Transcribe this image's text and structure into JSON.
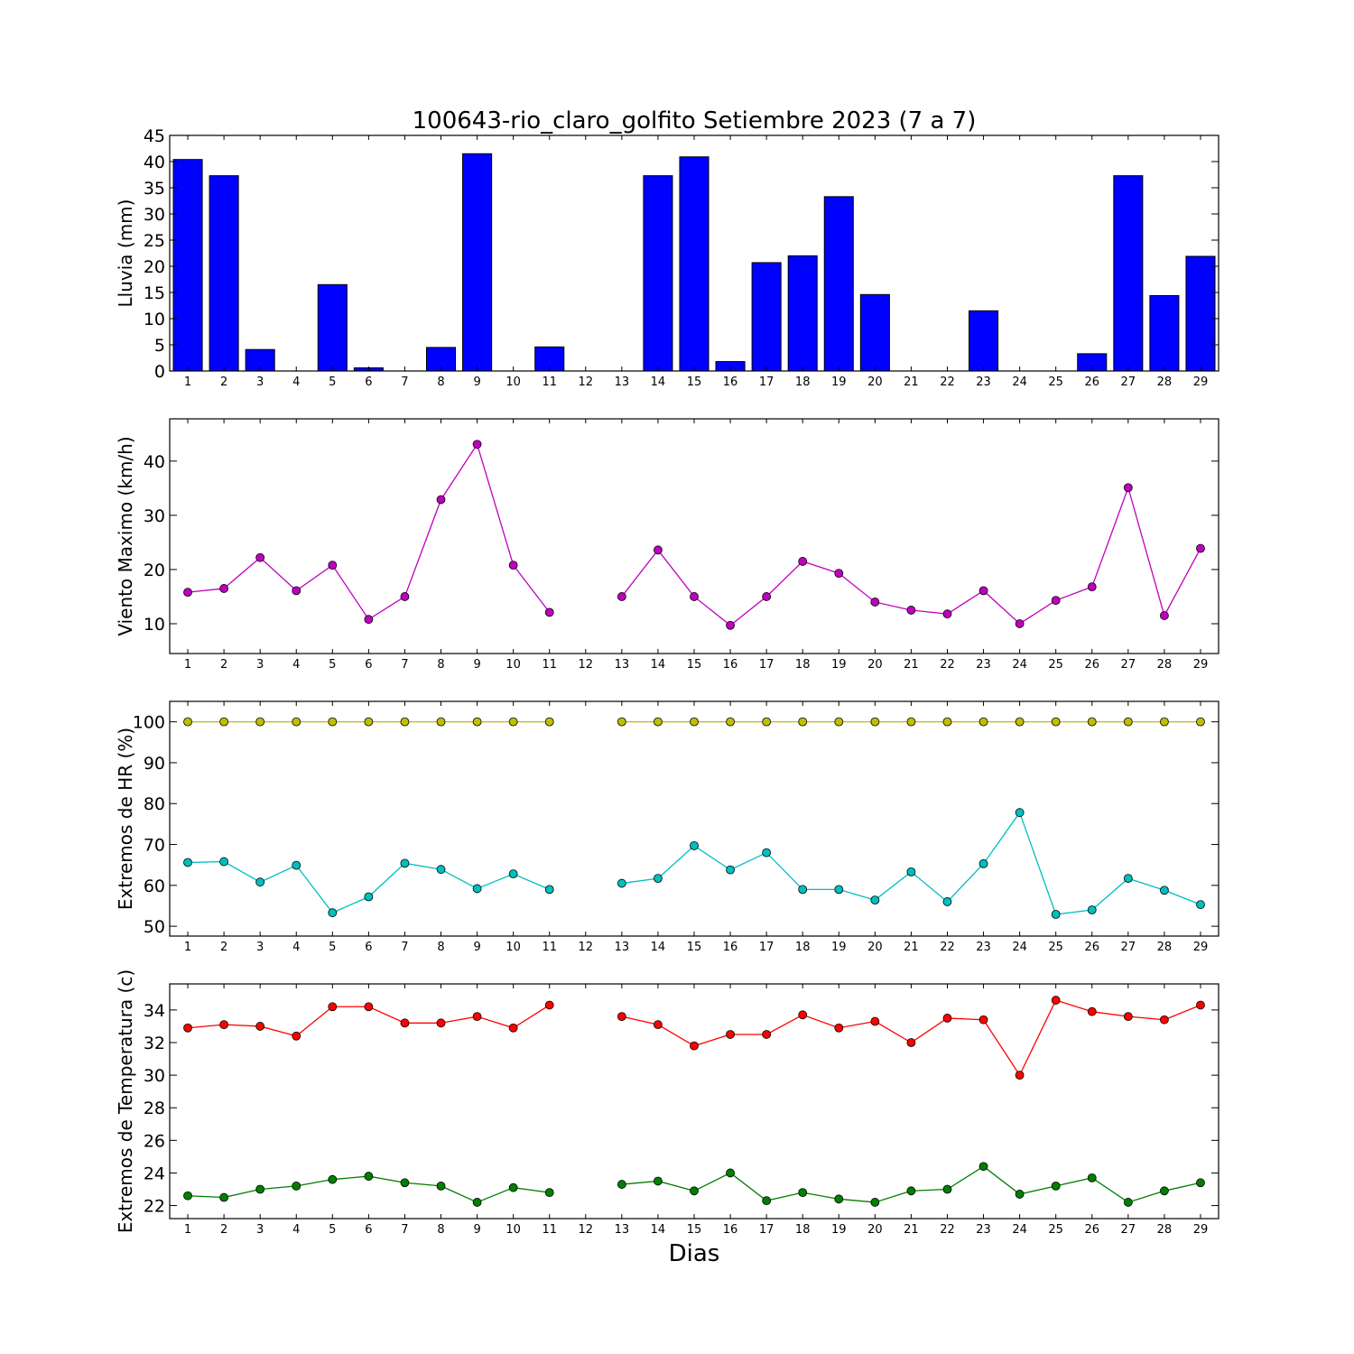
{
  "title": "100643-rio_claro_golfito Setiembre 2023  (7 a 7)",
  "xlabel": "Dias",
  "chart_data": [
    {
      "type": "bar",
      "ylabel": "Lluvia (mm)",
      "ylim": [
        0,
        45
      ],
      "yticks": [
        0,
        5,
        10,
        15,
        20,
        25,
        30,
        35,
        40,
        45
      ],
      "xlim": [
        0.5,
        29.5
      ],
      "categories": [
        1,
        2,
        3,
        4,
        5,
        6,
        7,
        8,
        9,
        10,
        11,
        12,
        13,
        14,
        15,
        16,
        17,
        18,
        19,
        20,
        21,
        22,
        23,
        24,
        25,
        26,
        27,
        28,
        29
      ],
      "series": [
        {
          "color": "#0000ff",
          "values": [
            40.4,
            37.3,
            4.1,
            0,
            16.5,
            0.6,
            0,
            4.5,
            41.5,
            0,
            4.6,
            0,
            0,
            37.3,
            40.9,
            1.8,
            20.7,
            22.0,
            33.3,
            14.6,
            0,
            0,
            11.5,
            0,
            0,
            3.3,
            37.3,
            14.4,
            21.9
          ]
        }
      ]
    },
    {
      "type": "line",
      "ylabel": "Viento Maximo (km/h)",
      "ylim": [
        4.5,
        47.8
      ],
      "yticks": [
        10,
        20,
        30,
        40
      ],
      "xlim": [
        0.5,
        29.5
      ],
      "x": [
        1,
        2,
        3,
        4,
        5,
        6,
        7,
        8,
        9,
        10,
        11,
        12,
        13,
        14,
        15,
        16,
        17,
        18,
        19,
        20,
        21,
        22,
        23,
        24,
        25,
        26,
        27,
        28,
        29
      ],
      "series": [
        {
          "color": "#bf00bf",
          "values": [
            15.8,
            16.5,
            22.2,
            16.1,
            20.8,
            10.8,
            15.0,
            32.9,
            43.1,
            20.8,
            12.1,
            null,
            15.0,
            23.6,
            15.0,
            9.7,
            15.0,
            21.5,
            19.3,
            14.0,
            12.5,
            11.8,
            16.1,
            10.0,
            14.3,
            16.8,
            35.1,
            11.5,
            23.9
          ]
        }
      ]
    },
    {
      "type": "line",
      "ylabel": "Extremos de HR (%)",
      "ylim": [
        47.6,
        105
      ],
      "yticks": [
        50,
        60,
        70,
        80,
        90,
        100
      ],
      "xlim": [
        0.5,
        29.5
      ],
      "x": [
        1,
        2,
        3,
        4,
        5,
        6,
        7,
        8,
        9,
        10,
        11,
        12,
        13,
        14,
        15,
        16,
        17,
        18,
        19,
        20,
        21,
        22,
        23,
        24,
        25,
        26,
        27,
        28,
        29
      ],
      "series": [
        {
          "color": "#bfbf00",
          "values": [
            100,
            100,
            100,
            100,
            100,
            100,
            100,
            100,
            100,
            100,
            100,
            null,
            100,
            100,
            100,
            100,
            100,
            100,
            100,
            100,
            100,
            100,
            100,
            100,
            100,
            100,
            100,
            100,
            100
          ]
        },
        {
          "color": "#00bfbf",
          "values": [
            65.6,
            65.8,
            60.8,
            64.9,
            53.3,
            57.2,
            65.4,
            63.9,
            59.2,
            62.8,
            59.0,
            null,
            60.5,
            61.7,
            69.7,
            63.8,
            68.0,
            59.0,
            59.0,
            56.4,
            63.3,
            56.0,
            65.3,
            77.8,
            52.9,
            54.0,
            61.7,
            58.8,
            55.3
          ]
        }
      ]
    },
    {
      "type": "line",
      "ylabel": "Extremos de Temperatura (c)",
      "ylim": [
        21.2,
        35.6
      ],
      "yticks": [
        22,
        24,
        26,
        28,
        30,
        32,
        34
      ],
      "xlim": [
        0.5,
        29.5
      ],
      "x": [
        1,
        2,
        3,
        4,
        5,
        6,
        7,
        8,
        9,
        10,
        11,
        12,
        13,
        14,
        15,
        16,
        17,
        18,
        19,
        20,
        21,
        22,
        23,
        24,
        25,
        26,
        27,
        28,
        29
      ],
      "series": [
        {
          "color": "#ff0000",
          "values": [
            32.9,
            33.1,
            33.0,
            32.4,
            34.2,
            34.2,
            33.2,
            33.2,
            33.6,
            32.9,
            34.3,
            null,
            33.6,
            33.1,
            31.8,
            32.5,
            32.5,
            33.7,
            32.9,
            33.3,
            32.0,
            33.5,
            33.4,
            30.0,
            34.6,
            33.9,
            33.6,
            33.4,
            34.3
          ]
        },
        {
          "color": "#007f00",
          "values": [
            22.6,
            22.5,
            23.0,
            23.2,
            23.6,
            23.8,
            23.4,
            23.2,
            22.2,
            23.1,
            22.8,
            null,
            23.3,
            23.5,
            22.9,
            24.0,
            22.3,
            22.8,
            22.4,
            22.2,
            22.9,
            23.0,
            24.4,
            22.7,
            23.2,
            23.7,
            22.2,
            22.9,
            23.4
          ]
        }
      ]
    }
  ]
}
